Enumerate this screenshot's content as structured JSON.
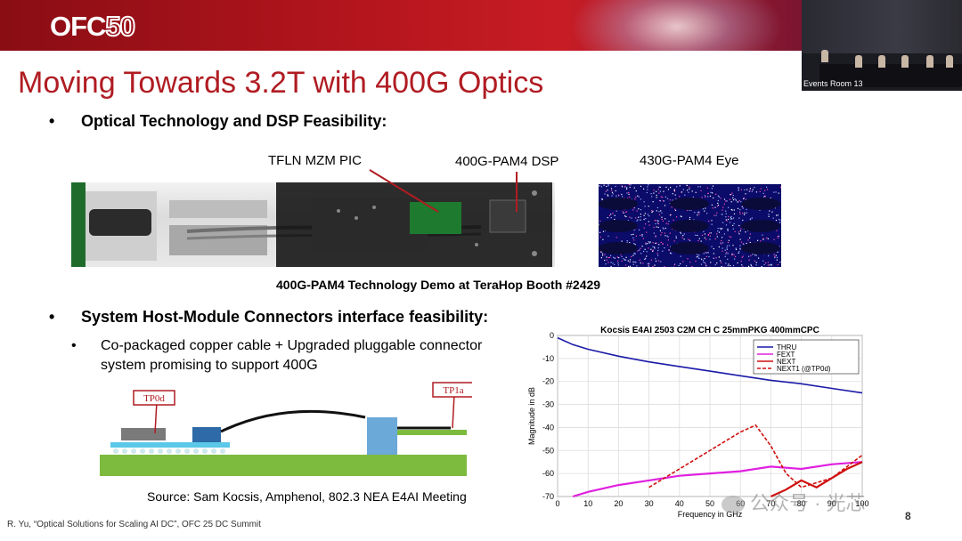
{
  "banner": {
    "logo_text": "OFC",
    "logo_number": "50"
  },
  "video": {
    "room_label": "Events Room 13"
  },
  "slide": {
    "title": "Moving Towards 3.2T with 400G Optics",
    "bullet1": "Optical Technology and DSP Feasibility:",
    "labels": {
      "tfln": "TFLN MZM PIC",
      "dsp": "400G-PAM4 DSP",
      "eye": "430G-PAM4 Eye"
    },
    "demo_caption": "400G-PAM4 Technology Demo at TeraHop Booth #2429",
    "bullet2": "System Host-Module Connectors interface feasibility:",
    "sub_bullet_line1": "Co-packaged copper cable  +  Upgraded pluggable connector",
    "sub_bullet_line2": "system promising to support 400G",
    "connector": {
      "tp0d": "TP0d",
      "tp1a": "TP1a"
    },
    "source": "Source: Sam Kocsis, Amphenol, 802.3 NEA E4AI Meeting",
    "footer": "R. Yu, “Optical Solutions for Scaling AI DC”, OFC 25 DC Summit",
    "page_number": "8",
    "watermark": "公众号 · 光芯"
  },
  "colors": {
    "title_red": "#b01c22",
    "thru": "#1a1aa8",
    "fext": "#e020e0",
    "next": "#d01010"
  },
  "chart_data": {
    "type": "line",
    "title": "Kocsis E4AI 2503 C2M CH C 25mmPKG 400mmCPC",
    "xlabel": "Frequency in GHz",
    "ylabel": "Magnitude in dB",
    "xlim": [
      0,
      100
    ],
    "ylim": [
      -70,
      0
    ],
    "xticks": [
      "0",
      "10",
      "20",
      "30",
      "40",
      "50",
      "60",
      "70",
      "80",
      "90",
      "100"
    ],
    "yticks": [
      "0",
      "-10",
      "-20",
      "-30",
      "-40",
      "-50",
      "-60",
      "-70"
    ],
    "grid": true,
    "legend_position": "top-right",
    "series": [
      {
        "name": "THRU",
        "x": [
          0,
          5,
          10,
          20,
          30,
          40,
          50,
          60,
          70,
          80,
          90,
          100
        ],
        "values": [
          -1,
          -4,
          -6,
          -9,
          -11.5,
          -13.5,
          -15.5,
          -17.5,
          -19.5,
          -21,
          -23,
          -25
        ]
      },
      {
        "name": "FEXT",
        "x": [
          5,
          10,
          20,
          30,
          40,
          50,
          60,
          70,
          80,
          90,
          100
        ],
        "values": [
          -70,
          -68,
          -65,
          -63,
          -61,
          -60,
          -59,
          -57,
          -58,
          -56,
          -55
        ]
      },
      {
        "name": "NEXT",
        "x": [
          70,
          75,
          80,
          85,
          90,
          95,
          100
        ],
        "values": [
          -70,
          -67,
          -63,
          -66,
          -62,
          -58,
          -55
        ]
      },
      {
        "name": "NEXT1 (@TP0d)",
        "x": [
          30,
          40,
          50,
          55,
          60,
          65,
          70,
          75,
          80,
          90,
          100
        ],
        "values": [
          -66,
          -58,
          -50,
          -46,
          -42,
          -39,
          -48,
          -60,
          -66,
          -62,
          -52
        ]
      }
    ]
  }
}
